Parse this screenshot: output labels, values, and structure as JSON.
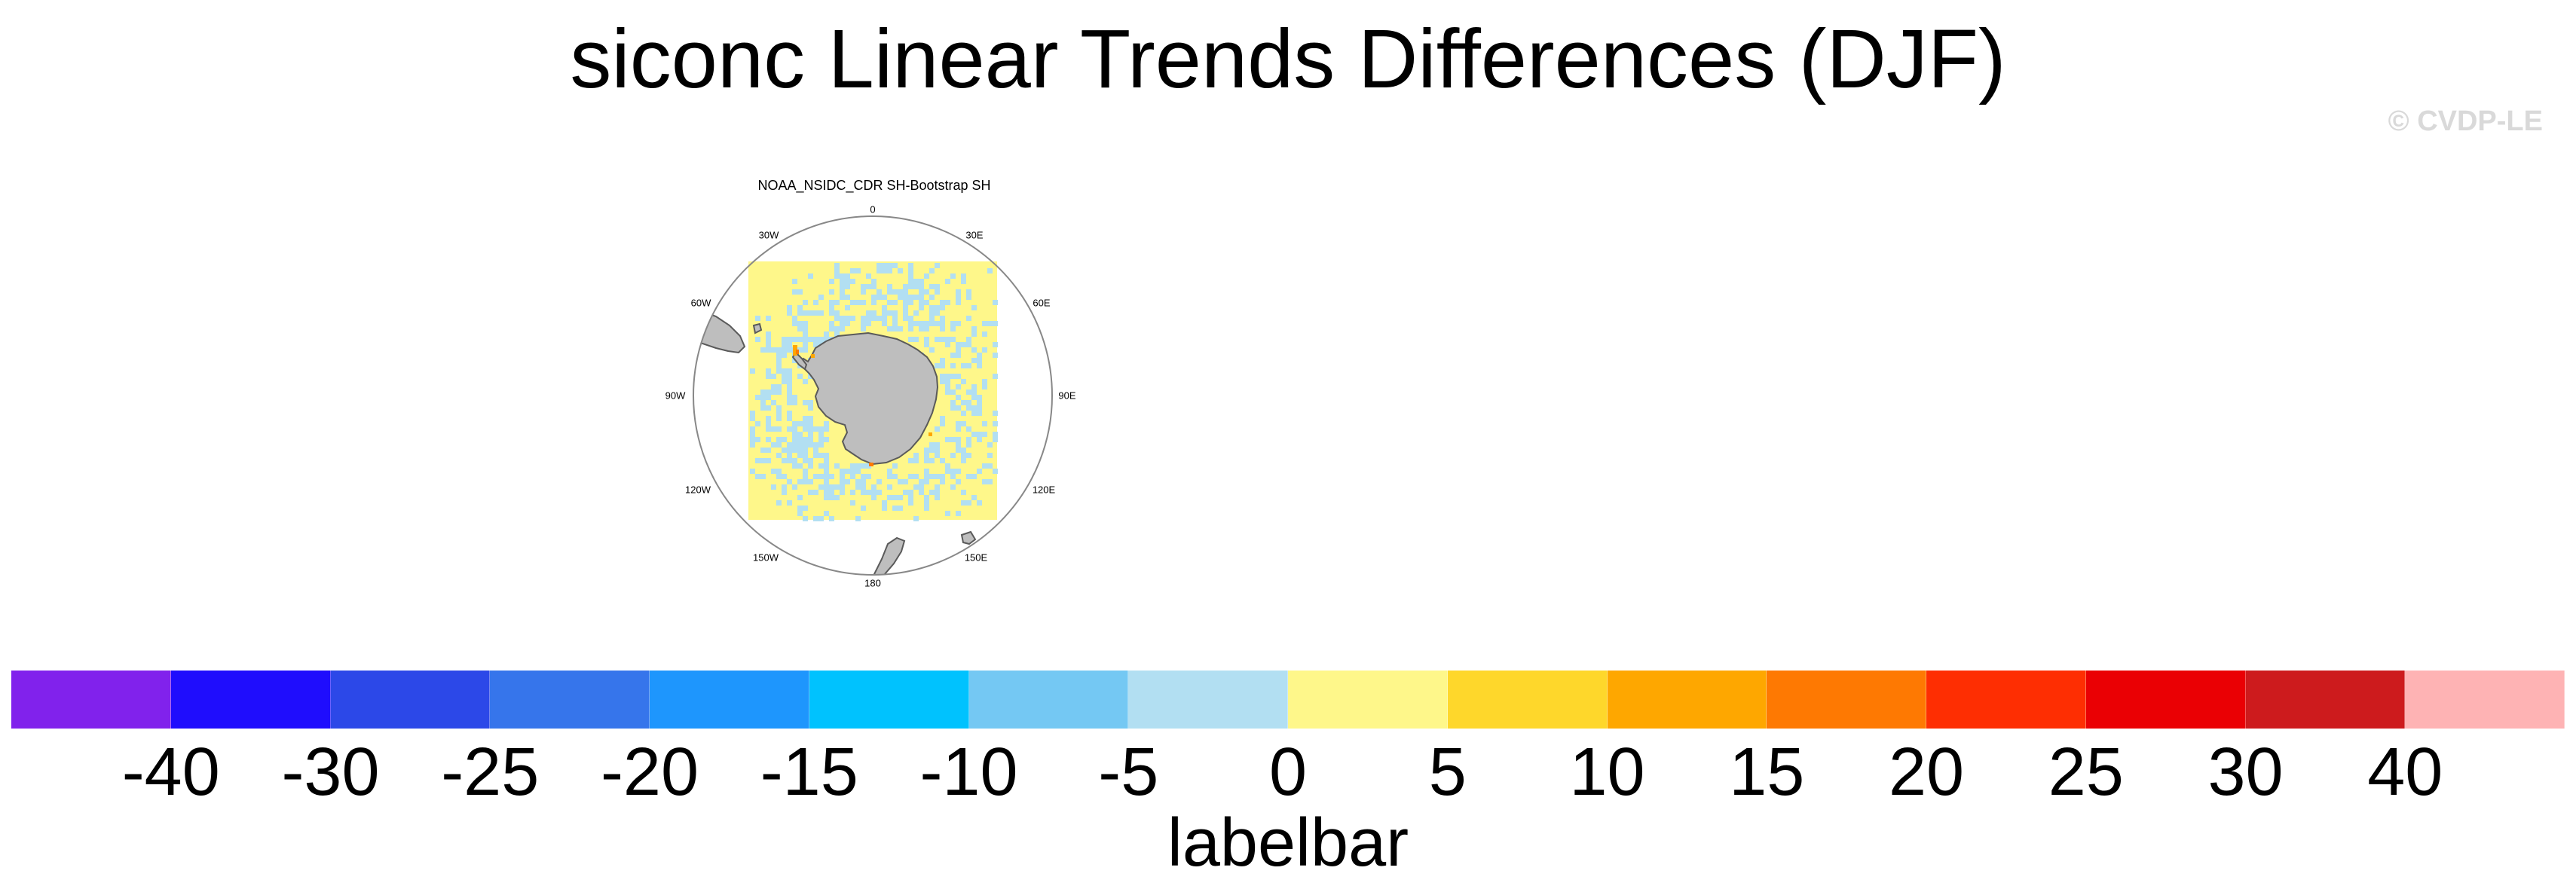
{
  "title": "siconc Linear Trends Differences (DJF)",
  "copyright": "© CVDP-LE",
  "panel": {
    "title": "NOAA_NSIDC_CDR SH-Bootstrap SH",
    "projection": "south-polar-stereographic",
    "longitude_labels": [
      "0",
      "30E",
      "60E",
      "90E",
      "120E",
      "150E",
      "180",
      "150W",
      "120W",
      "90W",
      "60W",
      "30W"
    ],
    "land_color": "#bebebe",
    "dominant_field_color": "#fef78a",
    "scattered_field_color": "#b2dff2"
  },
  "labelbar": {
    "title": "labelbar",
    "colors": [
      "#8122ec",
      "#1f0dfd",
      "#2c48e8",
      "#3675eb",
      "#1e96fd",
      "#00c2fe",
      "#74c8f3",
      "#b2dff2",
      "#fef78a",
      "#fed72b",
      "#fea700",
      "#fe7902",
      "#fe2e02",
      "#ea0004",
      "#cd1b1d",
      "#feb3b4"
    ],
    "tick_labels": [
      "-40",
      "-30",
      "-25",
      "-20",
      "-15",
      "-10",
      "-5",
      "0",
      "5",
      "10",
      "15",
      "20",
      "25",
      "30",
      "40"
    ]
  }
}
